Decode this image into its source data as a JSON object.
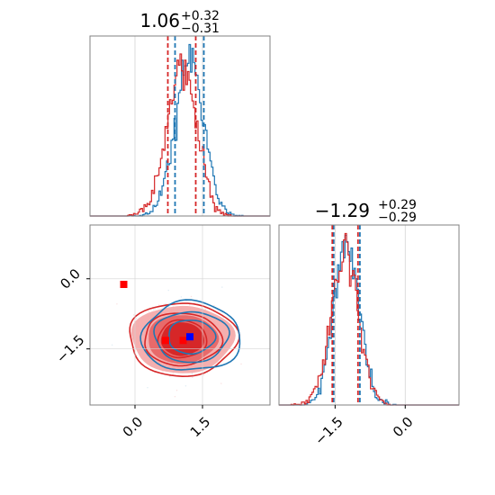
{
  "chart_data": {
    "type": "corner",
    "colors": {
      "blue": "#1f77b4",
      "red": "#d62728",
      "marker_blue": "#0000ff",
      "marker_red": "#ff0000"
    },
    "grid": true,
    "panels": {
      "top_left": {
        "type": "histogram",
        "title": {
          "main": "1.06",
          "sup": "+0.32",
          "sub": "−0.31"
        },
        "xlim": [
          -1.0,
          3.0
        ],
        "quantile_lines": {
          "blue": [
            0.89,
            1.53
          ],
          "red": [
            0.73,
            1.35
          ]
        }
      },
      "bottom_left": {
        "type": "contour",
        "xlim": [
          -1.0,
          3.0
        ],
        "ylim": [
          -2.7,
          1.15
        ],
        "x_ticks": [
          "0.0",
          "1.5"
        ],
        "y_ticks": [
          "0.0",
          "−1.5"
        ],
        "x_tick_values": [
          0.0,
          1.5
        ],
        "y_tick_values": [
          0.0,
          -1.5
        ],
        "points": [
          {
            "series": "red",
            "x": -0.25,
            "y": -0.12
          },
          {
            "series": "red",
            "x": 0.68,
            "y": -1.32
          },
          {
            "series": "red",
            "x": 1.07,
            "y": -1.32
          },
          {
            "series": "blue",
            "x": 1.22,
            "y": -1.24
          }
        ]
      },
      "bottom_right": {
        "type": "histogram",
        "title": {
          "main": "−1.29",
          "sup": "+0.29",
          "sub": "−0.29"
        },
        "xlim": [
          -2.7,
          1.15
        ],
        "x_ticks": [
          "−1.5",
          "0.0"
        ],
        "x_tick_values": [
          -1.5,
          0.0
        ],
        "quantile_lines": {
          "blue": [
            -1.53,
            -0.97
          ],
          "red": [
            -1.56,
            -1.01
          ]
        }
      }
    }
  }
}
